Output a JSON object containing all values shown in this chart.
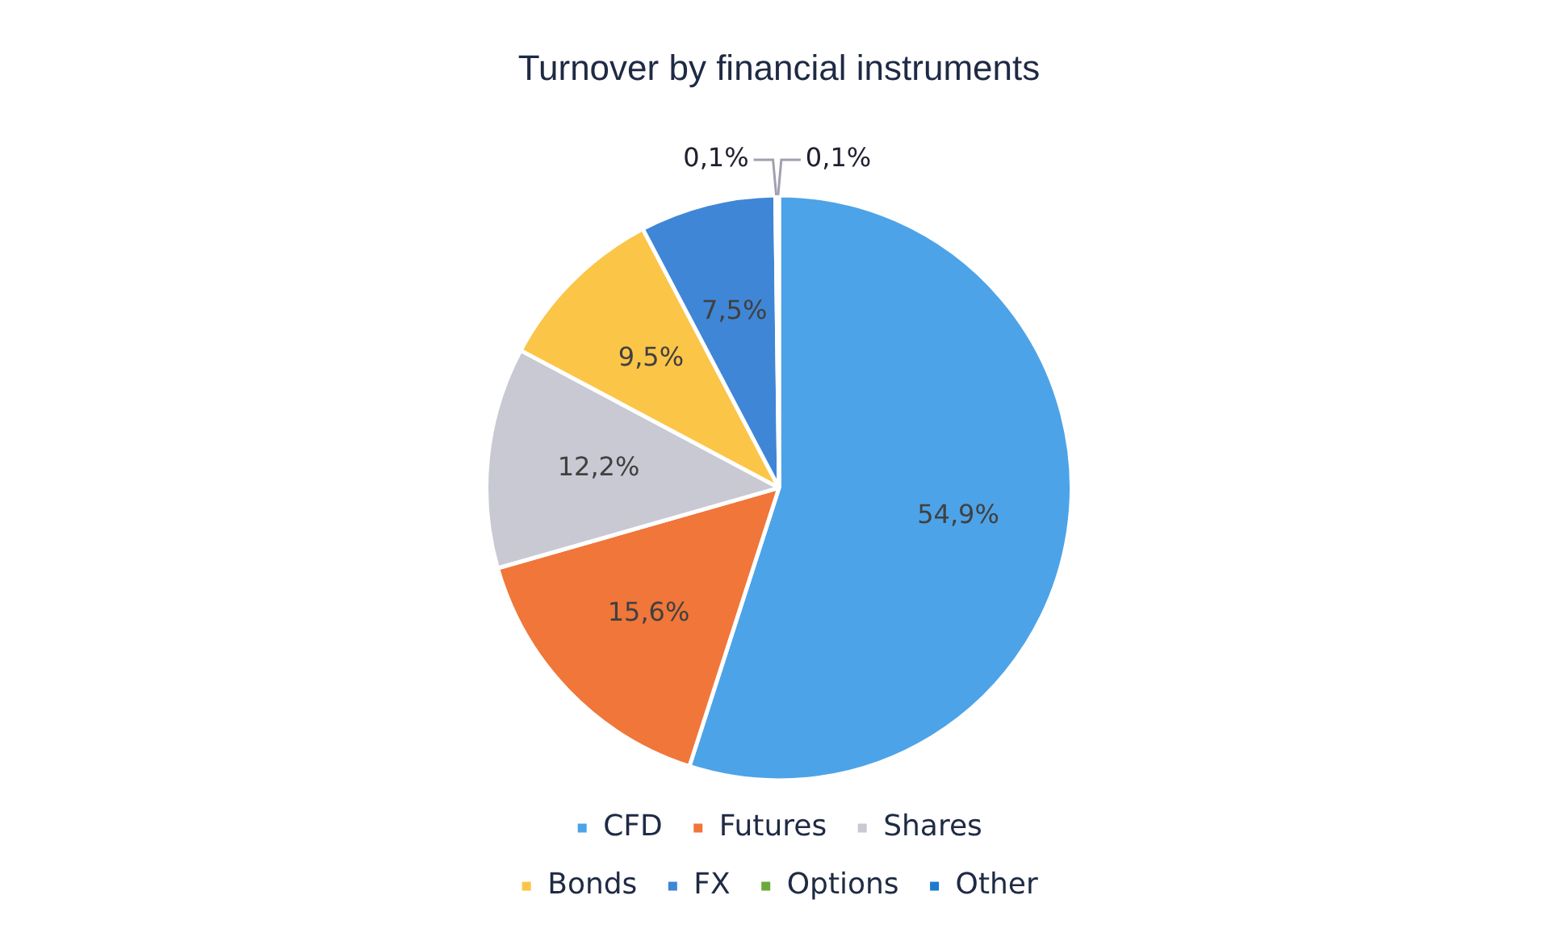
{
  "chart_data": {
    "type": "pie",
    "title": "Turnover by financial instruments",
    "categories": [
      "CFD",
      "Futures",
      "Shares",
      "Bonds",
      "FX",
      "Options",
      "Other"
    ],
    "values": [
      54.9,
      15.6,
      12.2,
      9.5,
      7.5,
      0.1,
      0.1
    ],
    "value_labels": [
      "54,9%",
      "15,6%",
      "12,2%",
      "9,5%",
      "7,5%",
      "0,1%",
      "0,1%"
    ],
    "colors": [
      "#4da3e8",
      "#f0763a",
      "#c9c9d3",
      "#fbc548",
      "#3f86d6",
      "#6aaa3c",
      "#1c7ad0"
    ],
    "legend": "bottom"
  }
}
